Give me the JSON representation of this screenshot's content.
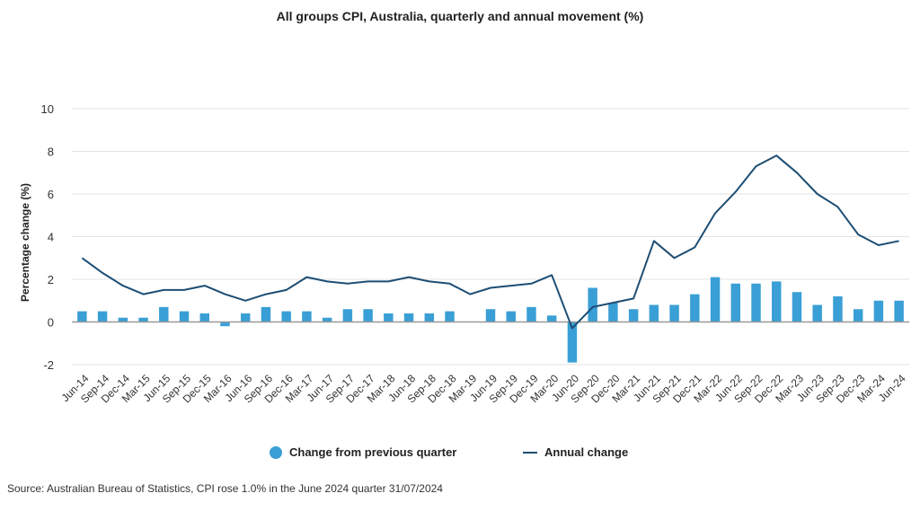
{
  "chart_data": {
    "type": "bar",
    "title": "All groups CPI, Australia, quarterly and annual movement (%)",
    "ylabel": "Percentage change (%)",
    "xlabel": "",
    "ylim": [
      -2,
      10
    ],
    "yticks": [
      -2,
      0,
      2,
      4,
      6,
      8,
      10
    ],
    "grid": true,
    "legend_position": "bottom",
    "categories": [
      "Jun-14",
      "Sep-14",
      "Dec-14",
      "Mar-15",
      "Jun-15",
      "Sep-15",
      "Dec-15",
      "Mar-16",
      "Jun-16",
      "Sep-16",
      "Dec-16",
      "Mar-17",
      "Jun-17",
      "Sep-17",
      "Dec-17",
      "Mar-18",
      "Jun-18",
      "Sep-18",
      "Dec-18",
      "Mar-19",
      "Jun-19",
      "Sep-19",
      "Dec-19",
      "Mar-20",
      "Jun-20",
      "Sep-20",
      "Dec-20",
      "Mar-21",
      "Jun-21",
      "Sep-21",
      "Dec-21",
      "Mar-22",
      "Jun-22",
      "Sep-22",
      "Dec-22",
      "Mar-23",
      "Jun-23",
      "Sep-23",
      "Dec-23",
      "Mar-24",
      "Jun-24"
    ],
    "series": [
      {
        "name": "Change from previous quarter",
        "kind": "bar",
        "color": "#3a9fd6",
        "values": [
          0.5,
          0.5,
          0.2,
          0.2,
          0.7,
          0.5,
          0.4,
          -0.2,
          0.4,
          0.7,
          0.5,
          0.5,
          0.2,
          0.6,
          0.6,
          0.4,
          0.4,
          0.4,
          0.5,
          0.0,
          0.6,
          0.5,
          0.7,
          0.3,
          -1.9,
          1.6,
          0.9,
          0.6,
          0.8,
          0.8,
          1.3,
          2.1,
          1.8,
          1.8,
          1.9,
          1.4,
          0.8,
          1.2,
          0.6,
          1.0,
          1.0
        ]
      },
      {
        "name": "Annual change",
        "kind": "line",
        "color": "#1d4e74",
        "values": [
          3.0,
          2.3,
          1.7,
          1.3,
          1.5,
          1.5,
          1.7,
          1.3,
          1.0,
          1.3,
          1.5,
          2.1,
          1.9,
          1.8,
          1.9,
          1.9,
          2.1,
          1.9,
          1.8,
          1.3,
          1.6,
          1.7,
          1.8,
          2.2,
          -0.3,
          0.7,
          0.9,
          1.1,
          3.8,
          3.0,
          3.5,
          5.1,
          6.1,
          7.3,
          7.8,
          7.0,
          6.0,
          5.4,
          4.1,
          3.6,
          3.8
        ]
      }
    ]
  },
  "legend": {
    "bar_label": "Change from previous quarter",
    "line_label": "Annual change"
  },
  "source": "Source: Australian Bureau of Statistics, CPI rose 1.0% in the June 2024 quarter 31/07/2024",
  "colors": {
    "bar": "#3a9fd6",
    "line": "#1d4e74",
    "grid": "#e3e3e3",
    "zero": "#999999"
  }
}
